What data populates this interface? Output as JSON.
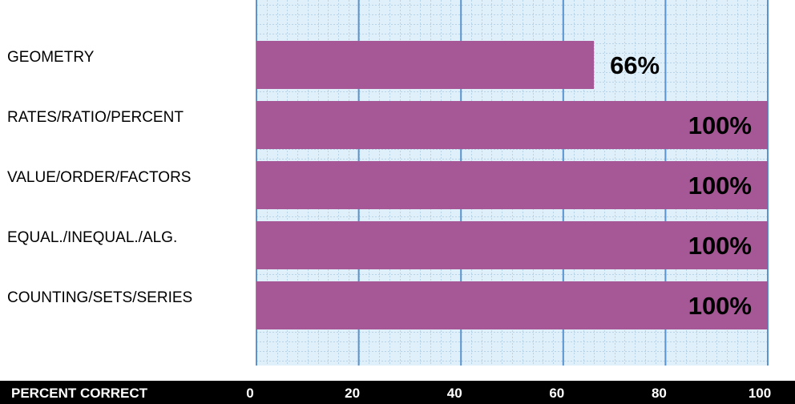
{
  "chart_data": {
    "type": "bar",
    "orientation": "horizontal",
    "categories": [
      "GEOMETRY",
      "RATES/RATIO/PERCENT",
      "VALUE/ORDER/FACTORS",
      "EQUAL./INEQUAL./ALG.",
      "COUNTING/SETS/SERIES"
    ],
    "values": [
      66,
      100,
      100,
      100,
      100
    ],
    "value_labels": [
      "66%",
      "100%",
      "100%",
      "100%",
      "100%"
    ],
    "xlabel": "PERCENT CORRECT",
    "ylabel": "",
    "xlim": [
      0,
      100
    ],
    "xticks": [
      0,
      20,
      40,
      60,
      80,
      100
    ],
    "grid": true,
    "legend": "none",
    "colors": {
      "bar": "#a65795",
      "plot_background": "#dff0fa",
      "major_grid": "#5b93cf",
      "minor_grid": "#b9d3e6",
      "axis_band": "#000000"
    }
  }
}
